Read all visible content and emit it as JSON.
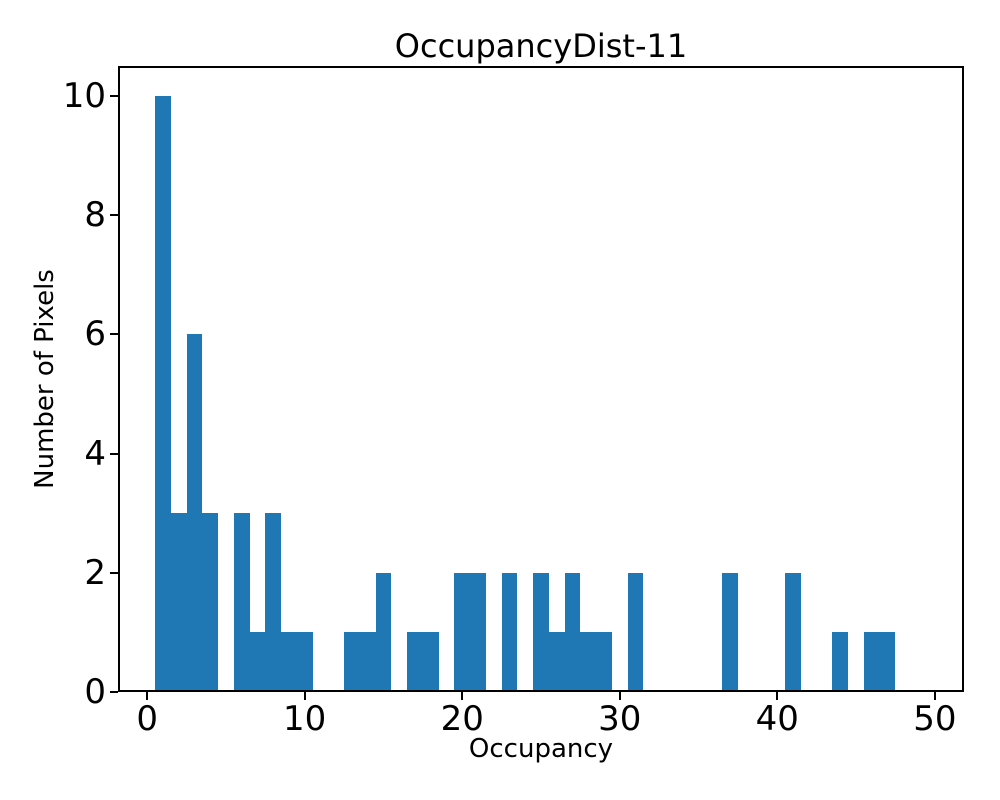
{
  "chart_data": {
    "type": "bar",
    "subtype": "histogram",
    "title": "OccupancyDist-11",
    "xlabel": "Occupancy",
    "ylabel": "Number of Pixels",
    "bin_width": 1,
    "bin_centers": [
      1,
      2,
      3,
      4,
      6,
      7,
      8,
      9,
      10,
      13,
      14,
      15,
      17,
      18,
      20,
      21,
      23,
      25,
      26,
      27,
      28,
      29,
      31,
      37,
      41,
      44,
      46,
      47
    ],
    "counts": [
      10,
      3,
      6,
      3,
      3,
      1,
      3,
      1,
      1,
      1,
      1,
      2,
      1,
      1,
      2,
      2,
      2,
      2,
      1,
      2,
      1,
      1,
      2,
      2,
      2,
      1,
      1,
      1
    ],
    "xticks": [
      0,
      10,
      20,
      30,
      40,
      50
    ],
    "yticks": [
      0,
      2,
      4,
      6,
      8,
      10
    ],
    "xlim": [
      -1.85,
      51.85
    ],
    "ylim": [
      0,
      10.5
    ],
    "grid": false,
    "legend": null,
    "bar_color": "#1f77b4",
    "axis_color": "#000000",
    "background_color": "#ffffff"
  }
}
